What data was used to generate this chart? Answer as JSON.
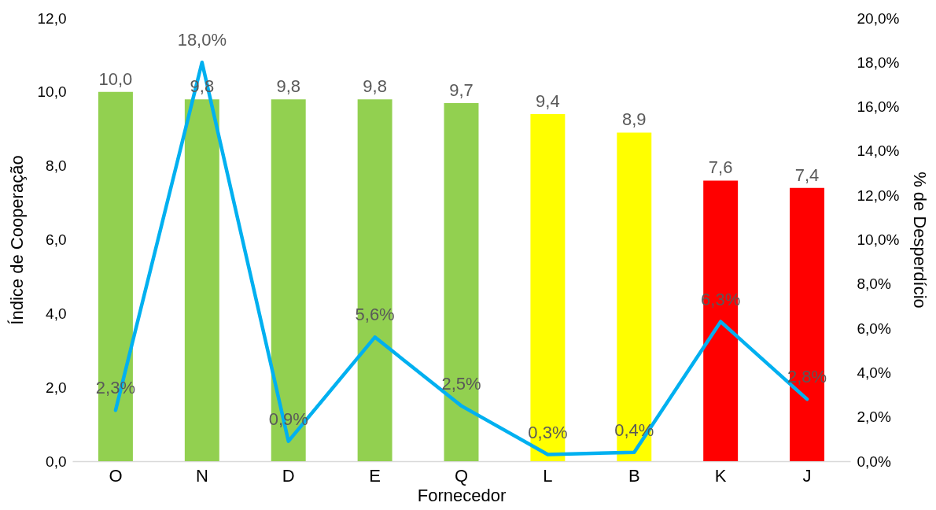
{
  "chart_data": {
    "type": "bar",
    "xlabel": "Fornecedor",
    "ylabel": "Índice de Cooperação",
    "y2label": "% de Desperdício",
    "categories": [
      "O",
      "N",
      "D",
      "E",
      "Q",
      "L",
      "B",
      "K",
      "J"
    ],
    "series": [
      {
        "colors": [
          "#92d050",
          "#92d050",
          "#92d050",
          "#92d050",
          "#92d050",
          "#ffff00",
          "#ffff00",
          "#ff0000",
          "#ff0000"
        ],
        "values": [
          10.0,
          9.8,
          9.8,
          9.8,
          9.7,
          9.4,
          8.9,
          7.6,
          7.4
        ],
        "value_labels": [
          "10,0",
          "9,8",
          "9,8",
          "9,8",
          "9,7",
          "9,4",
          "8,9",
          "7,6",
          "7,4"
        ]
      },
      {
        "type": "line",
        "axis": "y2",
        "color": "#00b0f0",
        "values": [
          2.3,
          18.0,
          0.9,
          5.6,
          2.5,
          0.3,
          0.4,
          6.3,
          2.8
        ],
        "value_labels": [
          "2,3%",
          "18,0%",
          "0,9%",
          "5,6%",
          "2,5%",
          "0,3%",
          "0,4%",
          "6,3%",
          "2,8%"
        ]
      }
    ],
    "ylim": [
      0,
      12
    ],
    "yticks": [
      {
        "value": 0,
        "label": "0,0"
      },
      {
        "value": 2,
        "label": "2,0"
      },
      {
        "value": 4,
        "label": "4,0"
      },
      {
        "value": 6,
        "label": "6,0"
      },
      {
        "value": 8,
        "label": "8,0"
      },
      {
        "value": 10,
        "label": "10,0"
      },
      {
        "value": 12,
        "label": "12,0"
      }
    ],
    "y2lim": [
      0,
      20
    ],
    "y2ticks": [
      {
        "value": 0,
        "label": "0,0%"
      },
      {
        "value": 2,
        "label": "2,0%"
      },
      {
        "value": 4,
        "label": "4,0%"
      },
      {
        "value": 6,
        "label": "6,0%"
      },
      {
        "value": 8,
        "label": "8,0%"
      },
      {
        "value": 10,
        "label": "10,0%"
      },
      {
        "value": 12,
        "label": "12,0%"
      },
      {
        "value": 14,
        "label": "14,0%"
      },
      {
        "value": 16,
        "label": "16,0%"
      },
      {
        "value": 18,
        "label": "18,0%"
      },
      {
        "value": 20,
        "label": "20,0%"
      }
    ],
    "grid": false,
    "legend": false
  }
}
